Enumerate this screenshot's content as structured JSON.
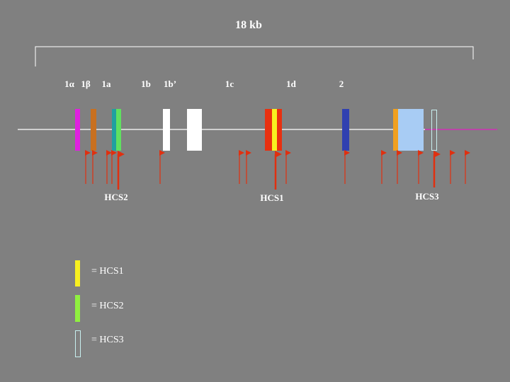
{
  "header": {
    "title": "18 kb"
  },
  "exon_labels": [
    "1α",
    "1β",
    "1a",
    "1b",
    "1b’",
    "1c",
    "1d",
    "2"
  ],
  "sites": [
    "HCS2",
    "HCS1",
    "HCS3"
  ],
  "legend": [
    "= HCS1",
    "= HCS2",
    "= HCS3"
  ]
}
